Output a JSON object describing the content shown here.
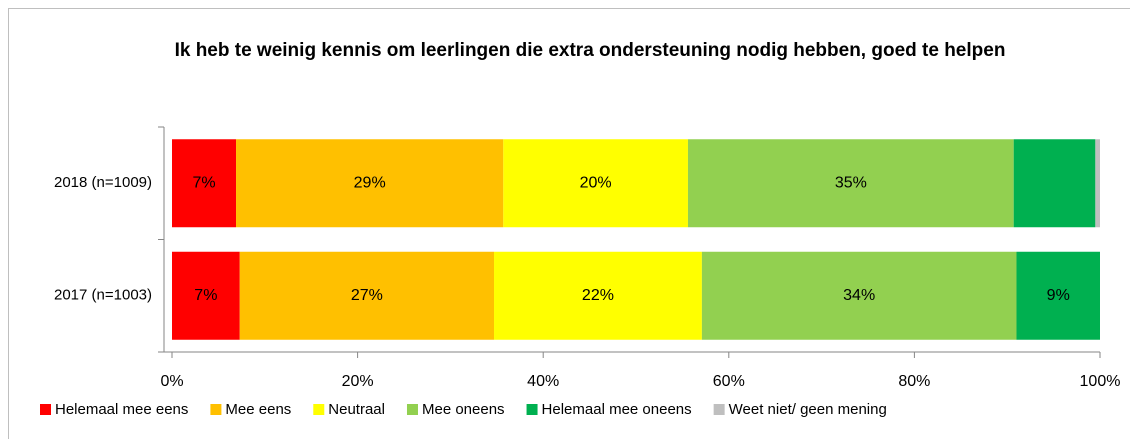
{
  "chart_data": {
    "type": "stacked-bar-horizontal",
    "title": "Ik heb te weinig kennis om leerlingen die extra ondersteuning nodig hebben, goed te helpen",
    "categories": [
      "2018 (n=1009)",
      "2017 (n=1003)"
    ],
    "series": [
      {
        "name": "Helemaal mee eens",
        "color": "#ff0000",
        "values": [
          6.9,
          7.3
        ],
        "value_labels": [
          "7%",
          "7%"
        ]
      },
      {
        "name": "Mee eens",
        "color": "#ffc000",
        "values": [
          28.8,
          27.4
        ],
        "value_labels": [
          "29%",
          "27%"
        ]
      },
      {
        "name": "Neutraal",
        "color": "#ffff00",
        "values": [
          19.9,
          22.4
        ],
        "value_labels": [
          "20%",
          "22%"
        ]
      },
      {
        "name": "Mee oneens",
        "color": "#92d050",
        "values": [
          35.1,
          33.9
        ],
        "value_labels": [
          "35%",
          "34%"
        ]
      },
      {
        "name": "Helemaal mee oneens",
        "color": "#00b050",
        "values": [
          8.8,
          9.0
        ],
        "value_labels": [
          null,
          "9%"
        ]
      },
      {
        "name": "Weet niet/ geen mening",
        "color": "#bfbfbf",
        "values": [
          0.5,
          0
        ],
        "value_labels": [
          null,
          null
        ]
      }
    ],
    "xlim": [
      0,
      100
    ],
    "xticks": [
      {
        "value": 0,
        "label": "0%"
      },
      {
        "value": 20,
        "label": "20%"
      },
      {
        "value": 40,
        "label": "40%"
      },
      {
        "value": 60,
        "label": "60%"
      },
      {
        "value": 80,
        "label": "80%"
      },
      {
        "value": 100,
        "label": "100%"
      }
    ],
    "legend": "bottom"
  }
}
